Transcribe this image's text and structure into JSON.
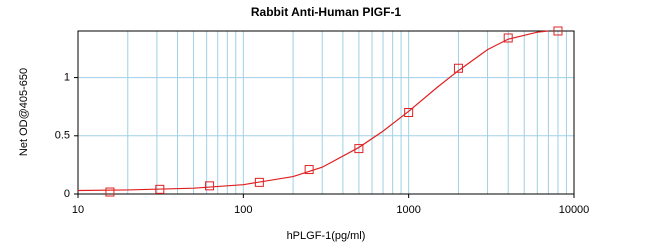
{
  "chart_data": {
    "type": "scatter",
    "title": "Rabbit Anti-Human PIGF-1",
    "xlabel": "hPLGF-1(pg/ml)",
    "ylabel": "Net OD@405-650",
    "xscale": "log",
    "xlim": [
      10,
      10000
    ],
    "ylim": [
      0,
      1.4
    ],
    "xticks": [
      10,
      100,
      1000,
      10000
    ],
    "yticks": [
      0,
      0.5,
      1
    ],
    "grid": true,
    "grid_color": "#9fd0e6",
    "series": [
      {
        "color": "#e02020",
        "marker": "square",
        "line": false,
        "x": [
          15.6,
          31.25,
          62.5,
          125,
          250,
          500,
          1000,
          2000,
          4000,
          8000
        ],
        "values": [
          0.017,
          0.04,
          0.07,
          0.1,
          0.21,
          0.39,
          0.7,
          1.08,
          1.34,
          1.4
        ]
      },
      {
        "color": "#e02020",
        "marker": "none",
        "line": true,
        "x": [
          10,
          20,
          50,
          100,
          200,
          300,
          500,
          700,
          1000,
          1500,
          2000,
          3000,
          4000,
          6000,
          7000
        ],
        "values": [
          0.03,
          0.035,
          0.05,
          0.08,
          0.15,
          0.23,
          0.4,
          0.54,
          0.71,
          0.92,
          1.06,
          1.24,
          1.33,
          1.39,
          1.4
        ]
      }
    ]
  }
}
